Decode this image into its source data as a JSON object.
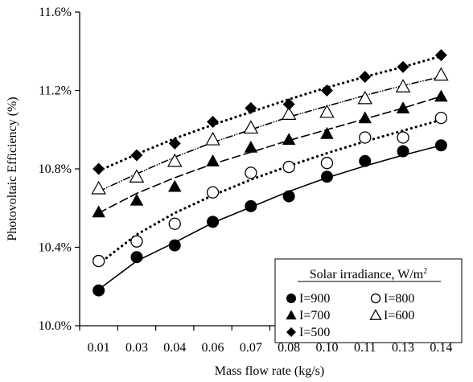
{
  "chart_data": {
    "type": "scatter",
    "xlabel": "Mass flow rate (kg/s)",
    "ylabel": "Photovoltaic  Efficiency (%)",
    "x": [
      "0.01",
      "0.03",
      "0.04",
      "0.06",
      "0.07",
      "0.08",
      "0.10",
      "0.11",
      "0.13",
      "0.14"
    ],
    "ylim": [
      10.0,
      11.6
    ],
    "yticks": [
      "10.0%",
      "10.4%",
      "10.8%",
      "11.2%",
      "11.6%"
    ],
    "grid": false,
    "legend": {
      "title": "Solar irradiance, W/m",
      "title_sup": "2",
      "placement": "bottom-right"
    },
    "series": [
      {
        "name": "I=900",
        "marker": "filled-circle",
        "line": "solid",
        "values": [
          10.18,
          10.35,
          10.41,
          10.53,
          10.61,
          10.66,
          10.76,
          10.84,
          10.89,
          10.92
        ],
        "fit": [
          10.185,
          10.33,
          10.425,
          10.525,
          10.605,
          10.685,
          10.755,
          10.815,
          10.87,
          10.92
        ]
      },
      {
        "name": "I=800",
        "marker": "open-circle",
        "line": "dotted",
        "values": [
          10.33,
          10.43,
          10.52,
          10.68,
          10.78,
          10.81,
          10.83,
          10.96,
          10.96,
          11.06
        ],
        "fit": [
          10.315,
          10.465,
          10.575,
          10.665,
          10.745,
          10.815,
          10.88,
          10.94,
          10.995,
          11.05
        ]
      },
      {
        "name": "I=700",
        "marker": "filled-triangle",
        "line": "dashed",
        "values": [
          10.58,
          10.64,
          10.71,
          10.84,
          10.91,
          10.95,
          10.98,
          11.06,
          11.11,
          11.17
        ],
        "fit": [
          10.575,
          10.675,
          10.755,
          10.825,
          10.885,
          10.945,
          11.0,
          11.055,
          11.11,
          11.17
        ]
      },
      {
        "name": "I=600",
        "marker": "open-triangle",
        "line": "dash-dot-dot",
        "values": [
          10.7,
          10.76,
          10.84,
          10.95,
          11.01,
          11.08,
          11.09,
          11.16,
          11.22,
          11.28
        ],
        "fit": [
          10.685,
          10.775,
          10.86,
          10.935,
          11.0,
          11.065,
          11.12,
          11.175,
          11.225,
          11.27
        ]
      },
      {
        "name": "I=500",
        "marker": "filled-diamond",
        "line": "dotted",
        "values": [
          10.8,
          10.87,
          10.93,
          11.04,
          11.11,
          11.13,
          11.2,
          11.27,
          11.32,
          11.38
        ],
        "fit": [
          10.79,
          10.875,
          10.955,
          11.025,
          11.09,
          11.155,
          11.215,
          11.27,
          11.32,
          11.375
        ]
      }
    ]
  }
}
